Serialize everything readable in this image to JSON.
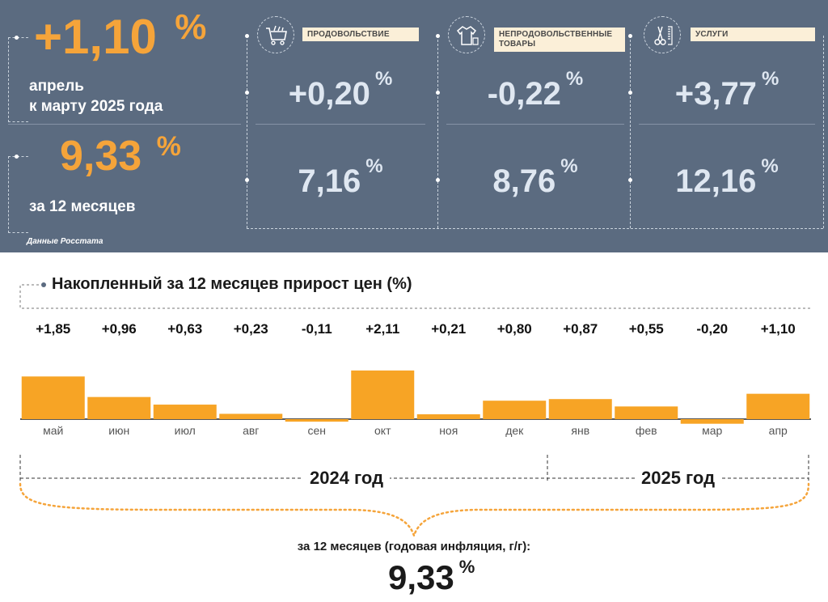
{
  "header": {
    "month": {
      "value": "+1,10",
      "unit": "%",
      "caption_line1": "апрель",
      "caption_line2": "к марту 2025 года"
    },
    "annual": {
      "value": "9,33",
      "unit": "%",
      "caption": "за 12 месяцев"
    },
    "categories": [
      {
        "label": "ПРОДОВОЛЬСТВИЕ",
        "icon": "shopping-cart-icon",
        "monthly": "+0,20",
        "annual": "7,16"
      },
      {
        "label": "НЕПРОДОВОЛЬСТВЕННЫЕ ТОВАРЫ",
        "icon": "clothes-icon",
        "monthly": "-0,22",
        "annual": "8,76"
      },
      {
        "label": "УСЛУГИ",
        "icon": "scissors-comb-icon",
        "monthly": "+3,77",
        "annual": "12,16"
      }
    ],
    "unit": "%",
    "source": "Данные Росстата"
  },
  "colors": {
    "panel": "#5b6b80",
    "accent": "#f5a43a",
    "value_text": "#dfe7f1",
    "bar": "#f7a425"
  },
  "chart_data": {
    "type": "bar",
    "title": "Накопленный за 12 месяцев прирост цен (%)",
    "categories": [
      "май",
      "июн",
      "июл",
      "авг",
      "сен",
      "окт",
      "ноя",
      "дек",
      "янв",
      "фев",
      "мар",
      "апр"
    ],
    "values": [
      1.85,
      0.96,
      0.63,
      0.23,
      -0.11,
      2.11,
      0.21,
      0.8,
      0.87,
      0.55,
      -0.2,
      1.1
    ],
    "value_labels": [
      "+1,85",
      "+0,96",
      "+0,63",
      "+0,23",
      "-0,11",
      "+2,11",
      "+0,21",
      "+0,80",
      "+0,87",
      "+0,55",
      "-0,20",
      "+1,10"
    ],
    "year_groups": [
      {
        "label": "2024 год",
        "months": 8
      },
      {
        "label": "2025 год",
        "months": 4
      }
    ],
    "ylim": [
      -0.3,
      2.3
    ],
    "grid": false,
    "legend": "none"
  },
  "footer": {
    "caption": "за 12 месяцев (годовая инфляция, г/г):",
    "value": "9,33",
    "unit": "%"
  }
}
